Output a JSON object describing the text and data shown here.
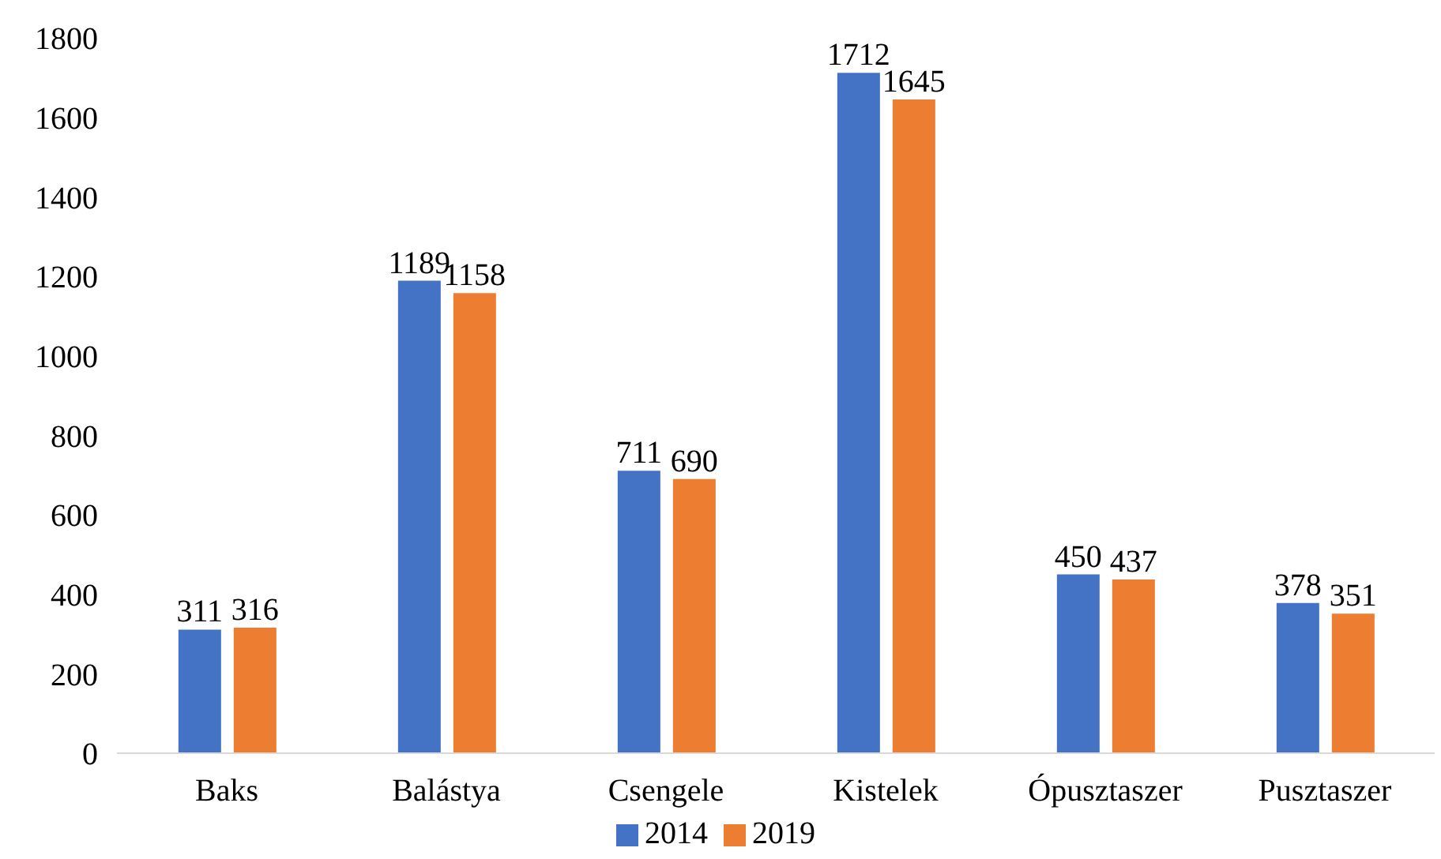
{
  "chart_data": {
    "type": "bar",
    "categories": [
      "Baks",
      "Balástya",
      "Csengele",
      "Kistelek",
      "Ópusztaszer",
      "Pusztaszer"
    ],
    "series": [
      {
        "name": "2014",
        "color": "#4472c4",
        "values": [
          311,
          1189,
          711,
          1712,
          450,
          378
        ]
      },
      {
        "name": "2019",
        "color": "#ed7d31",
        "values": [
          316,
          1158,
          690,
          1645,
          437,
          351
        ]
      }
    ],
    "ylim": [
      0,
      1800
    ],
    "yticks": [
      0,
      200,
      400,
      600,
      800,
      1000,
      1200,
      1400,
      1600,
      1800
    ],
    "grid": false,
    "legend": "bottom",
    "data_labels": true
  }
}
